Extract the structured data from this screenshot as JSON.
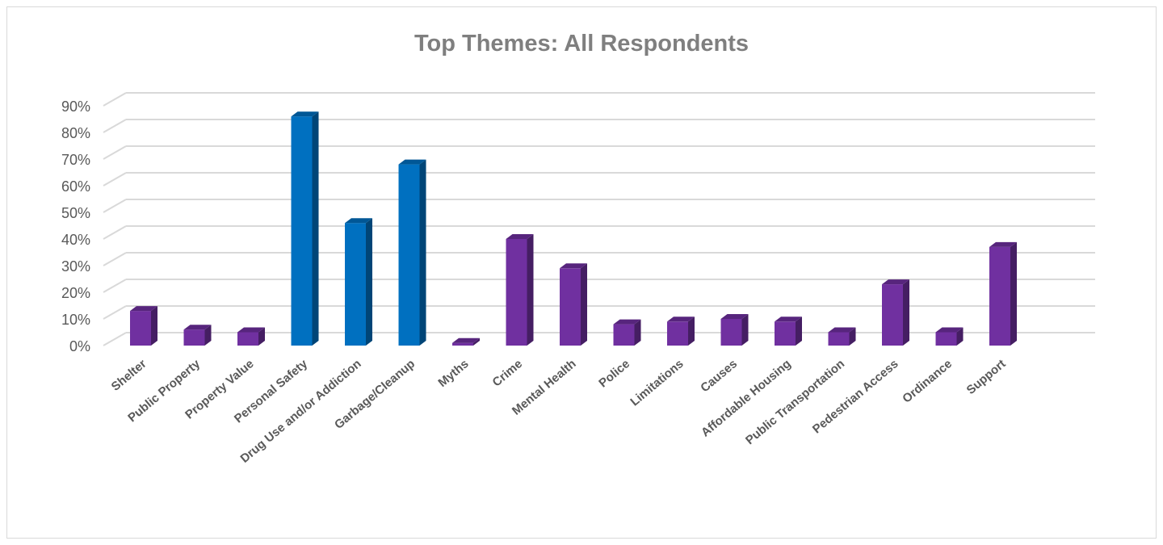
{
  "chart_data": {
    "type": "bar",
    "title": "Top Themes: All Respondents",
    "categories": [
      "Shelter",
      "Public Property",
      "Property Value",
      "Personal Safety",
      "Drug Use and/or Addiction",
      "Garbage/Cleanup",
      "Myths",
      "Crime",
      "Mental Health",
      "Police",
      "Limitations",
      "Causes",
      "Affordable Housing",
      "Public Transportation",
      "Pedestrian Access",
      "Ordinance",
      "Support"
    ],
    "values": [
      13,
      6,
      5,
      86,
      46,
      68,
      1,
      40,
      29,
      8,
      9,
      10,
      9,
      5,
      23,
      5,
      37
    ],
    "bar_colors": [
      "#7030a0",
      "#7030a0",
      "#7030a0",
      "#0070c0",
      "#0070c0",
      "#0070c0",
      "#7030a0",
      "#7030a0",
      "#7030a0",
      "#7030a0",
      "#7030a0",
      "#7030a0",
      "#7030a0",
      "#7030a0",
      "#7030a0",
      "#7030a0",
      "#7030a0"
    ],
    "yticks": [
      "0%",
      "10%",
      "20%",
      "30%",
      "40%",
      "50%",
      "60%",
      "70%",
      "80%",
      "90%"
    ],
    "ylim": [
      0,
      90
    ],
    "unit": "%",
    "grid": true,
    "legend": "none",
    "style": "3d-column",
    "xlabel": "",
    "ylabel": ""
  }
}
